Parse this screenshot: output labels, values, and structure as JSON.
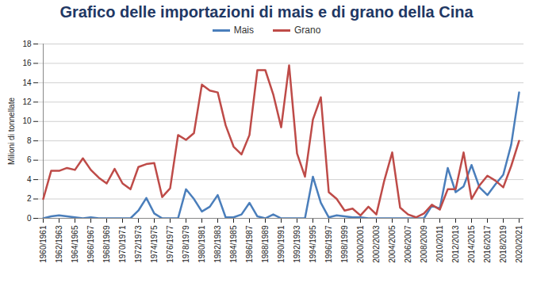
{
  "chart_data": {
    "type": "line",
    "title": "Grafico delle importazioni di mais e di grano della Cina",
    "y_label": "Milioni di tonnellate",
    "categories": [
      "1960/1961",
      null,
      "1962/1963",
      null,
      "1964/1965",
      null,
      "1966/1967",
      null,
      "1968/1969",
      null,
      "1970/1971",
      null,
      "1972/1973",
      null,
      "1974/1975",
      null,
      "1976/1977",
      null,
      "1978/1979",
      null,
      "1980/1981",
      null,
      "1982/1983",
      null,
      "1984/1985",
      null,
      "1986/1987",
      null,
      "1988/1989",
      null,
      "1990/1991",
      null,
      "1992/1993",
      null,
      "1994/1995",
      null,
      "1996/1997",
      null,
      "1998/1999",
      null,
      "2000/2001",
      null,
      "2002/2003",
      null,
      "2004/2005",
      null,
      "2006/2007",
      null,
      "2008/2009",
      null,
      "2010/2011",
      null,
      "2012/2013",
      null,
      "2014/2015",
      null,
      "2016/2017",
      null,
      "2018/2019",
      null,
      "2020/2021"
    ],
    "series": [
      {
        "name": "Mais",
        "color": "#4a7ebb",
        "values": [
          0.0,
          0.2,
          0.3,
          0.2,
          0.1,
          0.0,
          0.1,
          0.0,
          0.0,
          0.0,
          0.0,
          0.0,
          0.8,
          2.1,
          0.5,
          0.0,
          0.0,
          0.0,
          3.0,
          2.0,
          0.7,
          1.2,
          2.4,
          0.1,
          0.1,
          0.4,
          1.6,
          0.2,
          0.0,
          0.4,
          0.0,
          0.0,
          0.0,
          0.0,
          4.3,
          1.6,
          0.1,
          0.3,
          0.2,
          0.1,
          0.1,
          0.0,
          0.0,
          0.0,
          0.0,
          0.0,
          0.0,
          0.0,
          0.0,
          1.3,
          1.0,
          5.2,
          2.7,
          3.3,
          5.5,
          3.2,
          2.4,
          3.5,
          4.5,
          7.6,
          13.0
        ]
      },
      {
        "name": "Grano",
        "color": "#be4b48",
        "values": [
          2.0,
          4.9,
          4.9,
          5.2,
          5.0,
          6.2,
          5.0,
          4.2,
          3.6,
          5.1,
          3.6,
          3.0,
          5.3,
          5.6,
          5.7,
          2.2,
          3.1,
          8.6,
          8.1,
          8.8,
          13.8,
          13.2,
          13.0,
          9.6,
          7.4,
          6.6,
          8.6,
          15.3,
          15.3,
          12.8,
          9.4,
          15.8,
          6.7,
          4.3,
          10.2,
          12.5,
          2.7,
          2.0,
          0.8,
          1.0,
          0.3,
          1.2,
          0.4,
          3.9,
          6.8,
          1.1,
          0.4,
          0.1,
          0.5,
          1.4,
          0.9,
          3.0,
          3.0,
          6.8,
          2.0,
          3.4,
          4.4,
          3.9,
          3.2,
          5.4,
          8.0
        ]
      }
    ],
    "ylim": [
      0,
      18
    ],
    "yticks": [
      0,
      2,
      4,
      6,
      8,
      10,
      12,
      14,
      16,
      18
    ],
    "grid": true,
    "legend": "top"
  }
}
